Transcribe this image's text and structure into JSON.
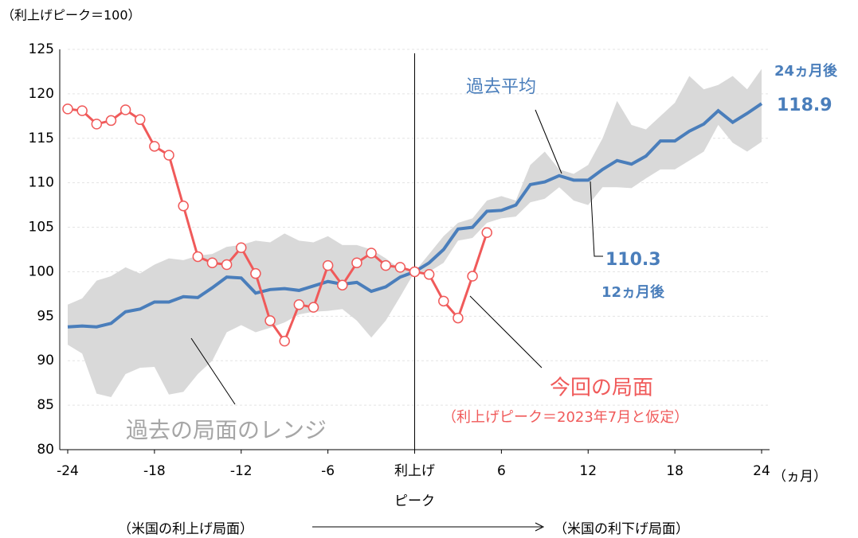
{
  "chart_data": {
    "type": "line",
    "y_label": "（利上げピーク＝100）",
    "x_unit": "（ヵ月）",
    "x_note_left": "（米国の利上げ局面）",
    "x_note_right": "（米国の利下げ局面）",
    "note_24": "24ヵ月後",
    "note_12": "12ヵ月後",
    "note_current": "（利上げピーク＝2023年7月と仮定）",
    "x": [
      -24,
      -23,
      -22,
      -21,
      -20,
      -19,
      -18,
      -17,
      -16,
      -15,
      -14,
      -13,
      -12,
      -11,
      -10,
      -9,
      -8,
      -7,
      -6,
      -5,
      -4,
      -3,
      -2,
      -1,
      0,
      1,
      2,
      3,
      4,
      5,
      6,
      7,
      8,
      9,
      10,
      11,
      12,
      13,
      14,
      15,
      16,
      17,
      18,
      19,
      20,
      21,
      22,
      23,
      24
    ],
    "xlim": [
      -24,
      24
    ],
    "xticks": [
      -24,
      -18,
      -12,
      -6,
      {
        "value": 0,
        "label": "利上げ\nピーク"
      },
      6,
      12,
      18,
      24
    ],
    "ylim": [
      80,
      125
    ],
    "yticks": [
      80,
      85,
      90,
      95,
      100,
      105,
      110,
      115,
      120,
      125
    ],
    "grid": true,
    "series": [
      {
        "name": "過去平均",
        "color": "#4a7ebb",
        "values": [
          93.8,
          93.9,
          93.8,
          94.2,
          95.5,
          95.8,
          96.6,
          96.6,
          97.2,
          97.1,
          98.2,
          99.4,
          99.3,
          97.6,
          98.0,
          98.1,
          97.9,
          98.4,
          98.9,
          98.6,
          98.8,
          97.8,
          98.3,
          99.4,
          100,
          101,
          102.5,
          104.8,
          105,
          106.8,
          106.9,
          107.5,
          109.8,
          110.1,
          110.8,
          110.3,
          110.3,
          111.5,
          112.5,
          112.1,
          113,
          114.7,
          114.7,
          115.8,
          116.6,
          118.1,
          116.8,
          117.8,
          118.9
        ]
      },
      {
        "name": "今回の局面",
        "color": "#f05a5a",
        "values": [
          118.3,
          118.1,
          116.6,
          117,
          118.2,
          117.1,
          114.1,
          113.1,
          107.4,
          101.7,
          101,
          100.8,
          102.7,
          99.8,
          94.5,
          92.2,
          96.3,
          96,
          100.7,
          98.5,
          101,
          102.1,
          100.7,
          100.5,
          100,
          99.7,
          96.7,
          94.8,
          99.5,
          104.4,
          null,
          null,
          null,
          null,
          null,
          null,
          null,
          null,
          null,
          null,
          null,
          null,
          null,
          null,
          null,
          null,
          null,
          null,
          null
        ]
      },
      {
        "name": "過去の局面のレンジ",
        "color": "#d9d9d9",
        "upper": [
          96.3,
          97,
          99,
          99.5,
          100.5,
          99.8,
          100.8,
          101.5,
          101.3,
          101.8,
          102,
          102.8,
          103,
          103.5,
          103.3,
          104.3,
          103.5,
          103.3,
          104,
          103,
          103,
          102.5,
          101.5,
          100.3,
          100,
          102,
          104,
          105.5,
          106,
          108,
          108.5,
          108,
          112,
          113.5,
          111.5,
          111,
          112,
          115,
          119.2,
          116.5,
          116,
          117.5,
          119,
          122,
          120.5,
          121,
          122,
          120.5,
          122.8
        ],
        "lower": [
          91.8,
          90.8,
          86.3,
          85.9,
          88.5,
          89.2,
          89.3,
          86.2,
          86.5,
          88.5,
          90,
          93.2,
          94,
          93.2,
          93.7,
          94.3,
          95.2,
          95.5,
          95.6,
          95.8,
          94.5,
          92.6,
          94.5,
          97.2,
          100,
          100,
          101,
          103.5,
          103.8,
          105.5,
          106,
          106.2,
          107.8,
          108.2,
          109.5,
          108,
          107.5,
          109.5,
          109.5,
          109.4,
          110.5,
          111.5,
          111.5,
          112.5,
          113.5,
          116.5,
          114.5,
          113.5,
          114.6
        ]
      }
    ]
  }
}
